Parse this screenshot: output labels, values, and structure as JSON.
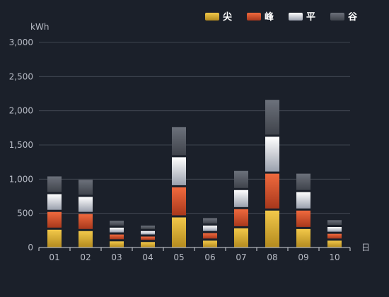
{
  "chart_data": {
    "type": "bar",
    "stacked": true,
    "y_unit": "kWh",
    "x_unit": "日",
    "categories": [
      "01",
      "02",
      "03",
      "04",
      "05",
      "06",
      "07",
      "08",
      "09",
      "10"
    ],
    "y_ticks": [
      "0",
      "500",
      "1,000",
      "1,500",
      "2,000",
      "2,500",
      "3,000"
    ],
    "ylim": [
      0,
      3000
    ],
    "grid": true,
    "legend_position": "top-right",
    "series": [
      {
        "name": "尖",
        "values": [
          260,
          240,
          90,
          80,
          440,
          100,
          280,
          540,
          270,
          100
        ],
        "color_top": "#f2c84a",
        "color_bottom": "#b38a1e"
      },
      {
        "name": "峰",
        "values": [
          260,
          250,
          100,
          80,
          440,
          110,
          280,
          540,
          270,
          100
        ],
        "color_top": "#f06a3e",
        "color_bottom": "#a8381c"
      },
      {
        "name": "平",
        "values": [
          260,
          250,
          100,
          80,
          440,
          110,
          280,
          540,
          270,
          100
        ],
        "color_top": "#ffffff",
        "color_bottom": "#9aa0ad"
      },
      {
        "name": "谷",
        "values": [
          260,
          250,
          100,
          80,
          440,
          110,
          280,
          540,
          270,
          100
        ],
        "color_top": "#6c717b",
        "color_bottom": "#3f434b"
      }
    ]
  }
}
